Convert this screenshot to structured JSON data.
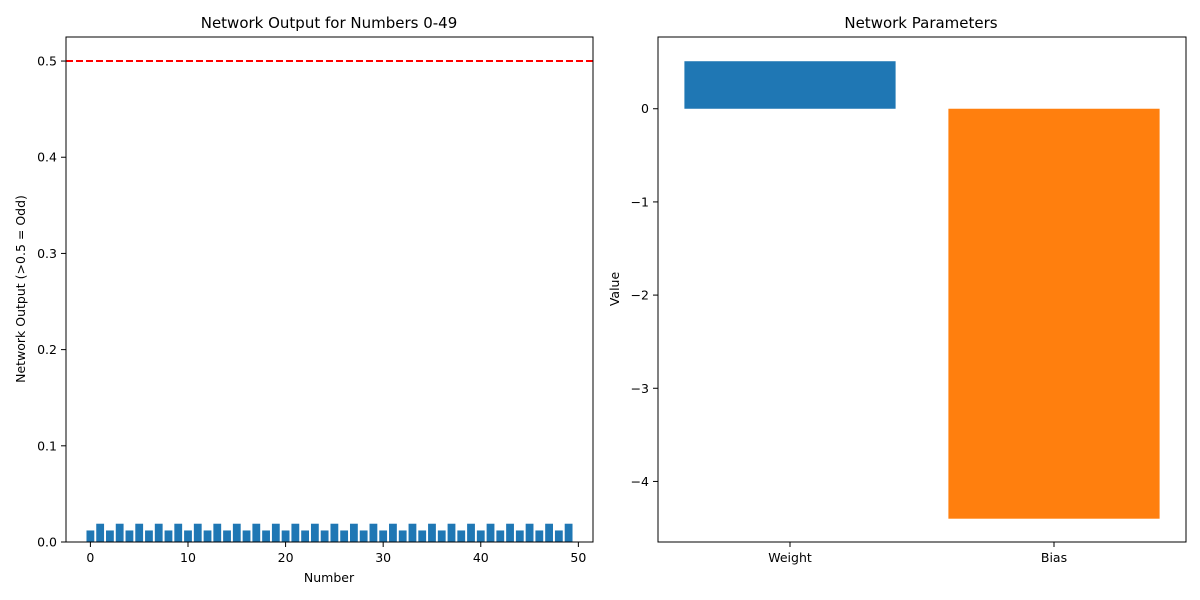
{
  "chart_data": [
    {
      "type": "bar",
      "title": "Network Output for Numbers 0-49",
      "xlabel": "Number",
      "ylabel": "Network Output (>0.5 = Odd)",
      "xlim": [
        -2.5,
        51.5
      ],
      "ylim": [
        0,
        0.525
      ],
      "x_ticks": [
        0,
        10,
        20,
        30,
        40,
        50
      ],
      "y_ticks": [
        0.0,
        0.1,
        0.2,
        0.3,
        0.4,
        0.5
      ],
      "y_tick_labels": [
        "0.0",
        "0.1",
        "0.2",
        "0.3",
        "0.4",
        "0.5"
      ],
      "x": [
        0,
        1,
        2,
        3,
        4,
        5,
        6,
        7,
        8,
        9,
        10,
        11,
        12,
        13,
        14,
        15,
        16,
        17,
        18,
        19,
        20,
        21,
        22,
        23,
        24,
        25,
        26,
        27,
        28,
        29,
        30,
        31,
        32,
        33,
        34,
        35,
        36,
        37,
        38,
        39,
        40,
        41,
        42,
        43,
        44,
        45,
        46,
        47,
        48,
        49
      ],
      "values": [
        0.012,
        0.019,
        0.012,
        0.019,
        0.012,
        0.019,
        0.012,
        0.019,
        0.012,
        0.019,
        0.012,
        0.019,
        0.012,
        0.019,
        0.012,
        0.019,
        0.012,
        0.019,
        0.012,
        0.019,
        0.012,
        0.019,
        0.012,
        0.019,
        0.012,
        0.019,
        0.012,
        0.019,
        0.012,
        0.019,
        0.012,
        0.019,
        0.012,
        0.019,
        0.012,
        0.019,
        0.012,
        0.019,
        0.012,
        0.019,
        0.012,
        0.019,
        0.012,
        0.019,
        0.012,
        0.019,
        0.012,
        0.019,
        0.012,
        0.019
      ],
      "bar_color": "#1f77b4",
      "threshold": {
        "value": 0.5,
        "color": "#ff0000",
        "style": "dashed"
      },
      "grid": false
    },
    {
      "type": "bar",
      "title": "Network Parameters",
      "xlabel": "",
      "ylabel": "Value",
      "categories": [
        "Weight",
        "Bias"
      ],
      "values": [
        0.51,
        -4.4
      ],
      "colors": [
        "#1f77b4",
        "#ff7f0e"
      ],
      "ylim": [
        -4.65,
        0.77
      ],
      "y_ticks": [
        0,
        -1,
        -2,
        -3,
        -4
      ],
      "y_tick_labels": [
        "0",
        "−1",
        "−2",
        "−3",
        "−4"
      ],
      "grid": false
    }
  ]
}
